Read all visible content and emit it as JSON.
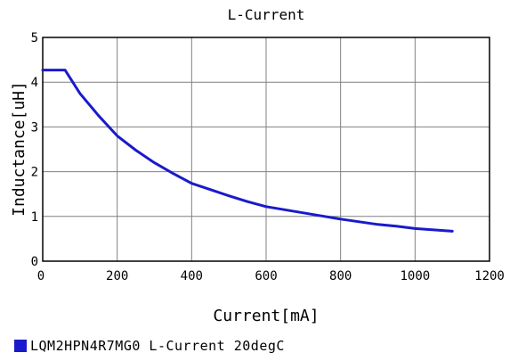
{
  "chart_data": {
    "type": "line",
    "title": "L-Current",
    "xlabel": "Current[mA]",
    "ylabel": "Inductance[uH]",
    "xlim": [
      0,
      1200
    ],
    "ylim": [
      0,
      5
    ],
    "xticks": [
      "0",
      "200",
      "400",
      "600",
      "800",
      "1000",
      "1200"
    ],
    "yticks": [
      "0",
      "1",
      "2",
      "3",
      "4",
      "5"
    ],
    "grid": true,
    "legend_position": "bottom-left",
    "series": [
      {
        "name": "LQM2HPN4R7MG0 L-Current 20degC",
        "color": "#1a1acc",
        "x": [
          0,
          60,
          100,
          150,
          200,
          250,
          300,
          350,
          400,
          450,
          500,
          550,
          600,
          650,
          700,
          750,
          800,
          850,
          900,
          950,
          1000,
          1050,
          1100
        ],
        "y": [
          4.27,
          4.27,
          3.75,
          3.25,
          2.8,
          2.48,
          2.2,
          1.96,
          1.74,
          1.6,
          1.46,
          1.33,
          1.22,
          1.15,
          1.08,
          1.01,
          0.94,
          0.88,
          0.82,
          0.78,
          0.73,
          0.7,
          0.67
        ]
      }
    ]
  }
}
